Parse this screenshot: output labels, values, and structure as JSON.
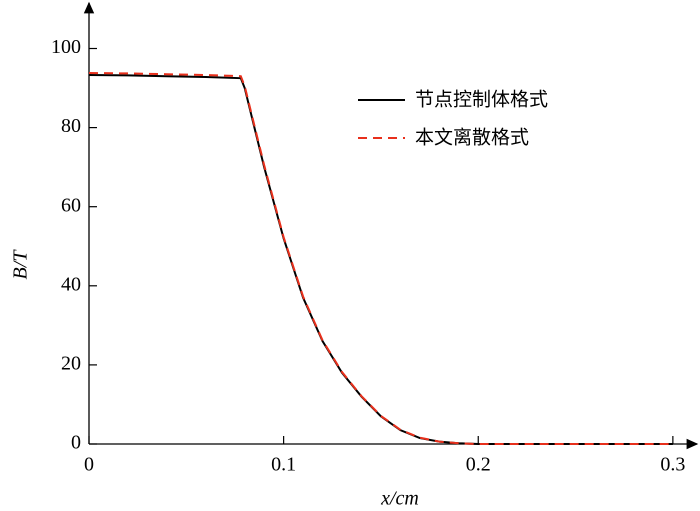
{
  "chart_data": {
    "type": "line",
    "xlabel": "x/cm",
    "ylabel": "B/T",
    "x": [
      0,
      0.02,
      0.04,
      0.06,
      0.078,
      0.08,
      0.09,
      0.1,
      0.11,
      0.12,
      0.13,
      0.14,
      0.15,
      0.16,
      0.17,
      0.18,
      0.19,
      0.2,
      0.25,
      0.3
    ],
    "series": [
      {
        "name": "节点控制体格式",
        "color": "#000000",
        "dash": false,
        "values": [
          93.3,
          93.2,
          93.0,
          92.8,
          92.5,
          90,
          70,
          52,
          37,
          26,
          18,
          12,
          7,
          3.5,
          1.5,
          0.6,
          0.2,
          0,
          0,
          0
        ]
      },
      {
        "name": "本文离散格式",
        "color": "#e8301c",
        "dash": true,
        "values": [
          93.8,
          93.7,
          93.5,
          93.3,
          93.0,
          90.5,
          70.5,
          52.3,
          37.3,
          26.2,
          18.2,
          12.1,
          7.1,
          3.6,
          1.6,
          0.6,
          0.2,
          0,
          0,
          0
        ]
      }
    ],
    "xlim": [
      0,
      0.3124
    ],
    "ylim": [
      0,
      111
    ],
    "xticks": [
      0,
      0.1,
      0.2,
      0.3
    ],
    "yticks": [
      0,
      20,
      40,
      60,
      80,
      100
    ]
  }
}
